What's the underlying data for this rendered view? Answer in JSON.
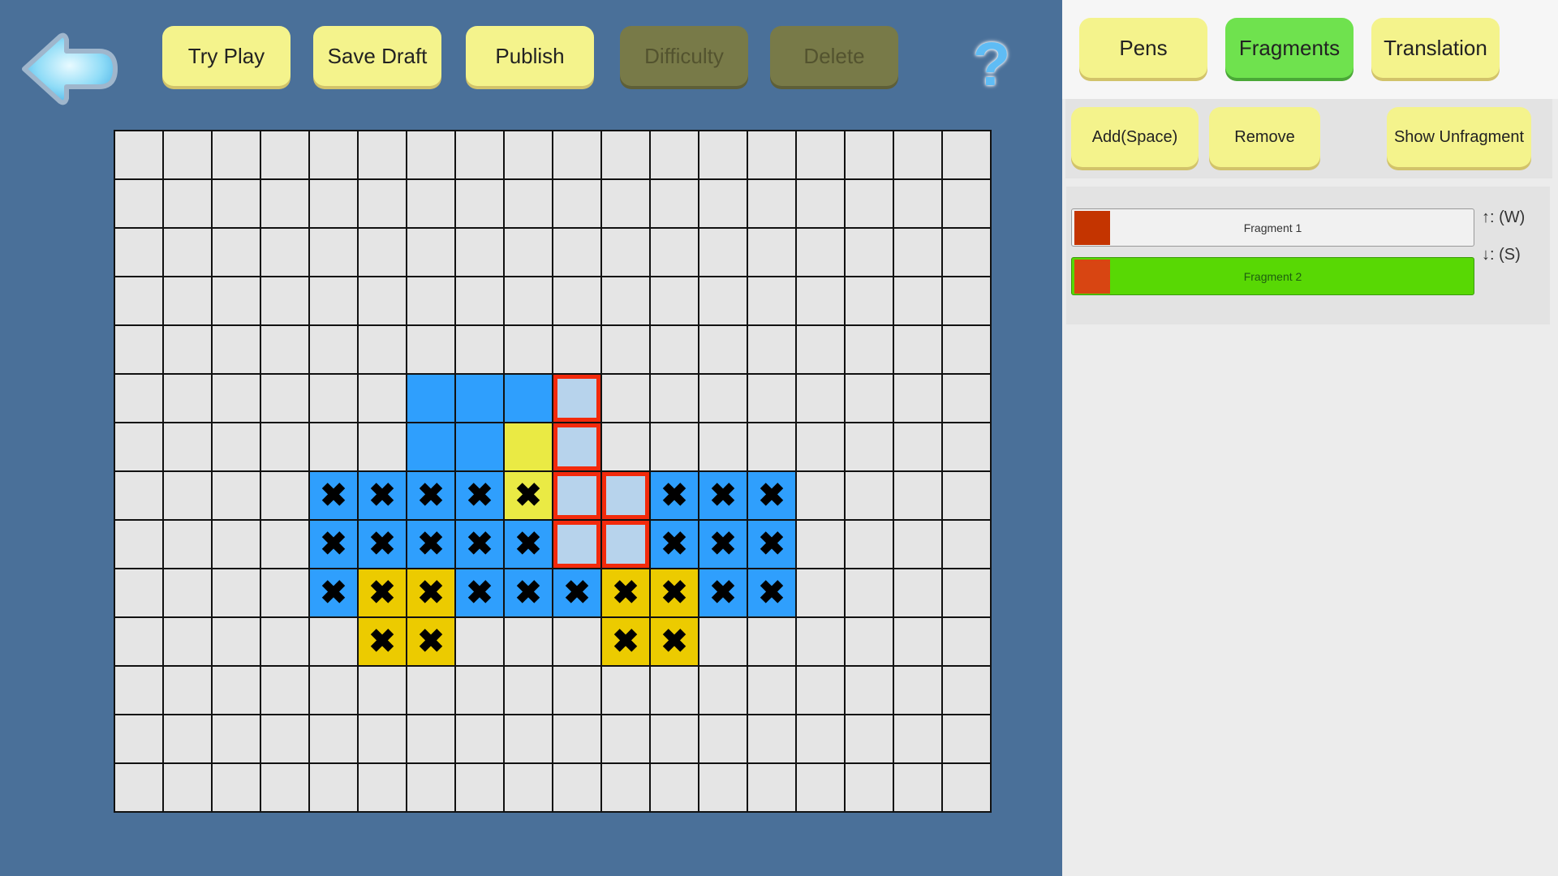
{
  "toolbar": {
    "back_icon": "back-arrow-icon",
    "buttons": [
      {
        "label": "Try Play",
        "enabled": true
      },
      {
        "label": "Save Draft",
        "enabled": true
      },
      {
        "label": "Publish",
        "enabled": true
      },
      {
        "label": "Difficulty",
        "enabled": false
      },
      {
        "label": "Delete",
        "enabled": false
      }
    ],
    "help_label": "?"
  },
  "grid": {
    "columns": 18,
    "rows": 14,
    "colors": {
      "empty": "#e5e5e5",
      "B": "#2f9ffd",
      "G": "#eccb00",
      "Y": "#eaea44",
      "L": "#b7d3ec",
      "fragment_border": "#f22a0c"
    },
    "cells": [
      "..................",
      "..................",
      "..................",
      "..................",
      "..................",
      "......BBBL........",
      "......BBYL........",
      "....BBBBYLLBBB....",
      "....BBBBBLLBBB....",
      "....BGGBBBGGBB....",
      ".....GG...GG......",
      "..................",
      "..................",
      ".................."
    ],
    "marks": [
      "..................",
      "..................",
      "..................",
      "..................",
      "..................",
      "..................",
      "..................",
      "....xxxxx..xxx....",
      "....xxxxx..xxx....",
      "....xxxxxxxxxx....",
      ".....xx...xx......",
      "..................",
      "..................",
      ".................."
    ],
    "mark_glyph": "✖"
  },
  "panel": {
    "tabs": [
      {
        "label": "Pens",
        "active": false
      },
      {
        "label": "Fragments",
        "active": true
      },
      {
        "label": "Translation",
        "active": false
      }
    ],
    "actions": {
      "add": "Add(Space)",
      "remove": "Remove",
      "show_unfragment": "Show Unfragment"
    },
    "fragments": [
      {
        "label": "Fragment 1",
        "swatch": "#c43400",
        "selected": false
      },
      {
        "label": "Fragment 2",
        "swatch": "#d84512",
        "selected": true,
        "highlight": "#58d804"
      }
    ],
    "keys": {
      "up": "↑:  (W)",
      "down": "↓:  (S)"
    }
  }
}
